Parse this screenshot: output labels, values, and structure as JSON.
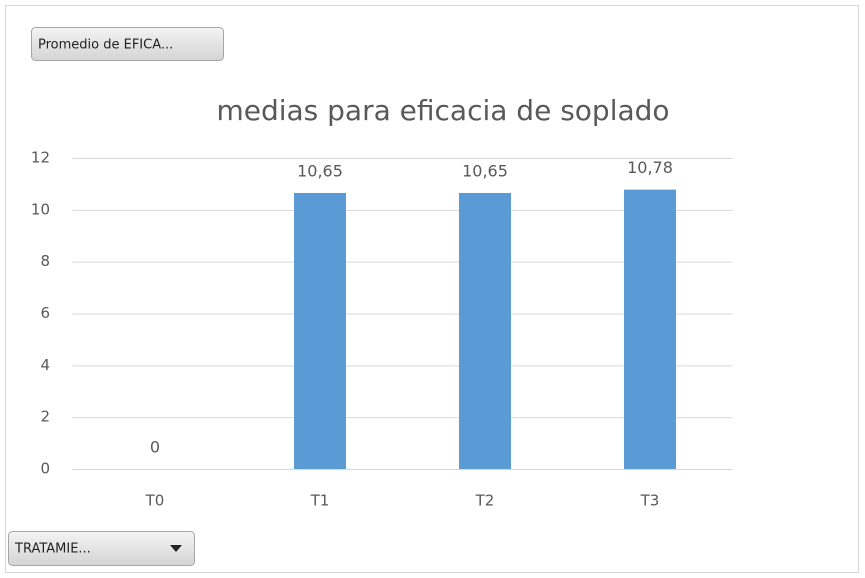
{
  "chart_data": {
    "type": "bar",
    "title": "medias para eficacia de soplado",
    "value_field_button": "Promedio de EFICA...",
    "axis_field_button": "TRATAMIE...",
    "categories": [
      "T0",
      "T1",
      "T2",
      "T3"
    ],
    "values": [
      0,
      10.65,
      10.65,
      10.78
    ],
    "value_labels": [
      "0",
      "10,65",
      "10,65",
      "10,78"
    ],
    "color": "#5b9bd5",
    "ylim": [
      0,
      12
    ],
    "yticks": [
      0,
      2,
      4,
      6,
      8,
      10,
      12
    ],
    "grid": true
  }
}
